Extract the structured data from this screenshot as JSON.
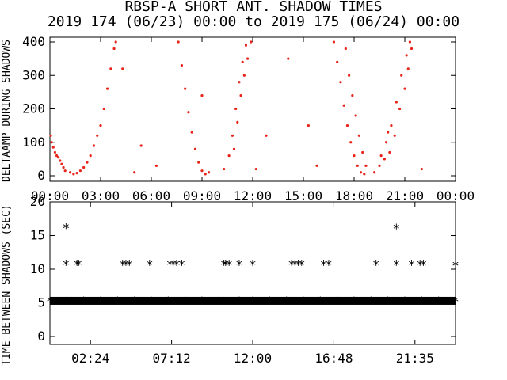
{
  "title": "RBSP-A SHORT ANT. SHADOW TIMES",
  "subtitle": "2019 174 (06/23) 00:00 to 2019 175 (06/24) 00:00",
  "colors": {
    "points_top": "#e8241b",
    "points_bottom": "#000000",
    "axes": "#000000"
  },
  "chart_data": [
    {
      "type": "scatter",
      "ylabel": "DELTAAMP DURING SHADOWS",
      "x_unit": "hours",
      "xlim": [
        0,
        24
      ],
      "ylim": [
        0,
        400
      ],
      "x_tick_labels": [
        "00:00",
        "03:00",
        "06:00",
        "09:00",
        "12:00",
        "15:00",
        "18:00",
        "21:00",
        "00:00"
      ],
      "x_tick_values": [
        0,
        3,
        6,
        9,
        12,
        15,
        18,
        21,
        24
      ],
      "y_tick_labels": [
        "0",
        "100",
        "200",
        "300",
        "400"
      ],
      "y_tick_values": [
        0,
        100,
        200,
        300,
        400
      ],
      "series": [
        {
          "points": [
            [
              0.05,
              120
            ],
            [
              0.1,
              100
            ],
            [
              0.2,
              85
            ],
            [
              0.3,
              70
            ],
            [
              0.4,
              60
            ],
            [
              0.5,
              55
            ],
            [
              0.6,
              45
            ],
            [
              0.7,
              35
            ],
            [
              0.8,
              25
            ],
            [
              0.9,
              15
            ],
            [
              1.2,
              10
            ],
            [
              1.4,
              5
            ],
            [
              1.6,
              8
            ],
            [
              1.8,
              15
            ],
            [
              2.0,
              25
            ],
            [
              2.2,
              40
            ],
            [
              2.4,
              60
            ],
            [
              2.6,
              90
            ],
            [
              2.8,
              120
            ],
            [
              3.0,
              150
            ],
            [
              3.2,
              200
            ],
            [
              3.4,
              260
            ],
            [
              3.6,
              320
            ],
            [
              3.8,
              380
            ],
            [
              3.9,
              400
            ],
            [
              4.3,
              320
            ],
            [
              5.0,
              10
            ],
            [
              5.4,
              90
            ],
            [
              7.6,
              400
            ],
            [
              7.8,
              330
            ],
            [
              8.0,
              260
            ],
            [
              8.2,
              190
            ],
            [
              8.4,
              130
            ],
            [
              8.6,
              80
            ],
            [
              8.8,
              40
            ],
            [
              9.0,
              15
            ],
            [
              9.2,
              5
            ],
            [
              9.4,
              10
            ],
            [
              9.0,
              240
            ],
            [
              10.3,
              20
            ],
            [
              10.6,
              60
            ],
            [
              10.8,
              120
            ],
            [
              11.0,
              200
            ],
            [
              11.2,
              280
            ],
            [
              11.4,
              340
            ],
            [
              11.6,
              390
            ],
            [
              10.9,
              80
            ],
            [
              11.1,
              160
            ],
            [
              11.3,
              240
            ],
            [
              11.5,
              300
            ],
            [
              11.7,
              350
            ],
            [
              11.9,
              400
            ],
            [
              12.2,
              20
            ],
            [
              14.1,
              350
            ],
            [
              6.3,
              30
            ],
            [
              12.8,
              120
            ],
            [
              15.3,
              150
            ],
            [
              15.8,
              30
            ],
            [
              16.8,
              400
            ],
            [
              17.0,
              340
            ],
            [
              17.2,
              280
            ],
            [
              17.4,
              210
            ],
            [
              17.6,
              150
            ],
            [
              17.8,
              100
            ],
            [
              18.0,
              60
            ],
            [
              18.2,
              30
            ],
            [
              18.4,
              10
            ],
            [
              18.6,
              5
            ],
            [
              17.5,
              380
            ],
            [
              17.7,
              300
            ],
            [
              17.9,
              240
            ],
            [
              18.1,
              180
            ],
            [
              18.3,
              120
            ],
            [
              18.5,
              70
            ],
            [
              18.7,
              30
            ],
            [
              19.2,
              10
            ],
            [
              19.5,
              30
            ],
            [
              19.8,
              50
            ],
            [
              20.1,
              70
            ],
            [
              20.4,
              120
            ],
            [
              20.7,
              200
            ],
            [
              21.0,
              260
            ],
            [
              21.2,
              320
            ],
            [
              21.4,
              380
            ],
            [
              19.6,
              60
            ],
            [
              19.9,
              100
            ],
            [
              20.2,
              150
            ],
            [
              20.5,
              220
            ],
            [
              20.8,
              300
            ],
            [
              21.1,
              360
            ],
            [
              21.3,
              400
            ],
            [
              20.0,
              130
            ],
            [
              22.0,
              20
            ]
          ]
        }
      ]
    },
    {
      "type": "scatter",
      "ylabel": "TIME BETWEEN SHADOWS (SEC)",
      "x_unit": "hours",
      "xlim": [
        0,
        24
      ],
      "ylim": [
        0,
        20
      ],
      "x_tick_labels": [
        "02:24",
        "07:12",
        "12:00",
        "16:48",
        "21:35"
      ],
      "x_tick_values": [
        2.4,
        7.2,
        12.0,
        16.8,
        21.6
      ],
      "y_tick_labels": [
        "0",
        "5",
        "10",
        "15",
        "20"
      ],
      "y_tick_values": [
        0,
        5,
        10,
        15,
        20
      ],
      "series": [
        {
          "points": [
            [
              0.95,
              16.2
            ],
            [
              0.95,
              10.7
            ],
            [
              1.6,
              10.7
            ],
            [
              1.7,
              10.7
            ],
            [
              4.3,
              10.7
            ],
            [
              4.5,
              10.7
            ],
            [
              4.7,
              10.7
            ],
            [
              5.9,
              10.7
            ],
            [
              7.1,
              10.7
            ],
            [
              7.3,
              10.7
            ],
            [
              7.5,
              10.7
            ],
            [
              7.8,
              10.7
            ],
            [
              10.3,
              10.7
            ],
            [
              10.4,
              10.7
            ],
            [
              10.6,
              10.7
            ],
            [
              11.2,
              10.7
            ],
            [
              12.0,
              10.7
            ],
            [
              14.3,
              10.7
            ],
            [
              14.5,
              10.7
            ],
            [
              14.7,
              10.7
            ],
            [
              14.9,
              10.7
            ],
            [
              16.2,
              10.7
            ],
            [
              16.5,
              10.7
            ],
            [
              19.3,
              10.7
            ],
            [
              20.5,
              16.1
            ],
            [
              20.5,
              10.7
            ],
            [
              21.4,
              10.7
            ],
            [
              21.9,
              10.7
            ],
            [
              22.1,
              10.7
            ],
            [
              24.0,
              10.6
            ],
            [
              0.0,
              5.3
            ],
            [
              1.0,
              5.3
            ],
            [
              2.0,
              5.3
            ],
            [
              3.0,
              5.3
            ],
            [
              4.0,
              5.3
            ],
            [
              5.0,
              5.3
            ],
            [
              6.0,
              5.3
            ],
            [
              7.0,
              5.3
            ],
            [
              8.0,
              5.3
            ],
            [
              9.0,
              5.3
            ],
            [
              10.0,
              5.3
            ],
            [
              11.2,
              5.3
            ],
            [
              12.0,
              5.3
            ],
            [
              13.0,
              5.3
            ],
            [
              14.0,
              5.3
            ],
            [
              15.0,
              5.3
            ],
            [
              16.0,
              5.3
            ],
            [
              17.0,
              5.3
            ],
            [
              18.0,
              5.3
            ],
            [
              19.0,
              5.3
            ],
            [
              20.0,
              5.3
            ],
            [
              21.0,
              5.3
            ],
            [
              22.0,
              5.3
            ],
            [
              23.0,
              5.3
            ],
            [
              24.0,
              5.3
            ]
          ]
        }
      ]
    }
  ]
}
